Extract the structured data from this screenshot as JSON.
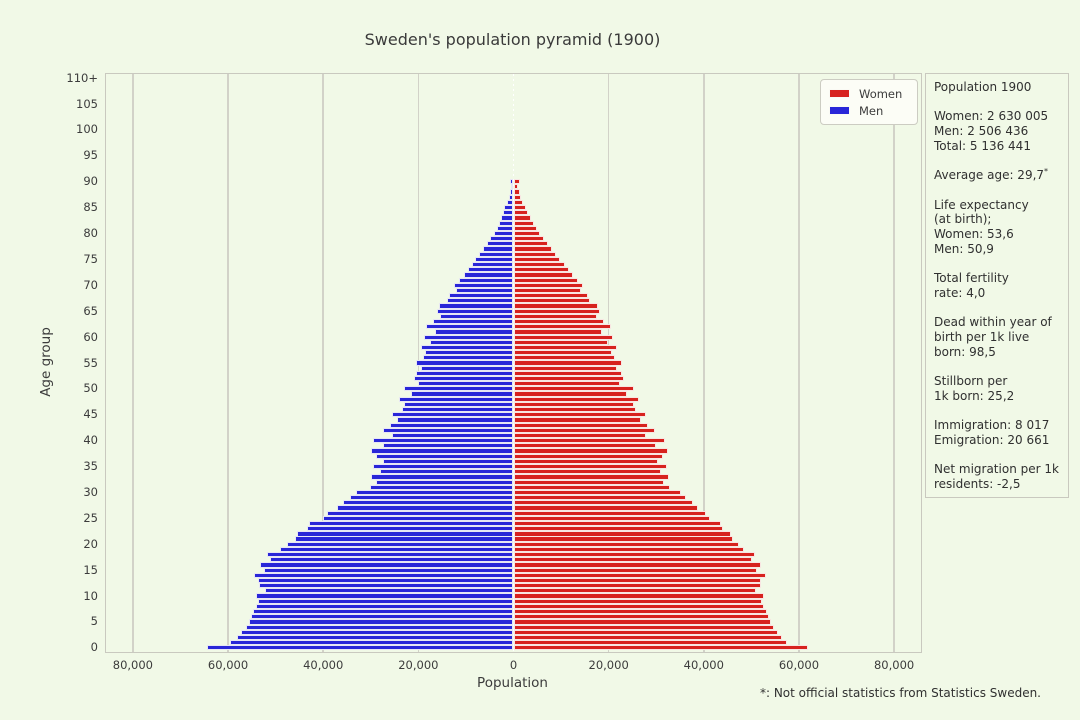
{
  "page": {
    "background": "#f1f9e7",
    "text_color": "#3c3c3c"
  },
  "title": "Sweden's population pyramid (1900)",
  "footnote": "*: Not official statistics from Statistics Sweden.",
  "info_panel": {
    "groups": [
      [
        "Population 1900"
      ],
      [
        "Women: 2 630 005",
        "Men: 2 506 436",
        "Total: 5 136 441"
      ],
      [
        {
          "text": "Average age: 29,7",
          "sup": "*"
        }
      ],
      [
        "Life expectancy",
        "(at birth);",
        "Women: 53,6",
        "Men: 50,9"
      ],
      [
        "Total fertility",
        "rate: 4,0"
      ],
      [
        "Dead within year of",
        "birth per 1k live",
        "born: 98,5"
      ],
      [
        "Stillborn per",
        "1k born: 25,2"
      ],
      [
        "Immigration: 8 017",
        "Emigration: 20 661"
      ],
      [
        "Net migration per 1k",
        "residents: -2,5"
      ]
    ]
  },
  "chart_data": {
    "type": "bar",
    "variant": "population-pyramid-horizontal",
    "title": "Sweden's population pyramid (1900)",
    "xlabel": "Population",
    "ylabel": "Age group",
    "xlim": [
      -85650,
      85650
    ],
    "ylim": [
      -0.8,
      110.8
    ],
    "grid": "vertical-gridlines-at-x-ticks",
    "grid_color": "#d2d2c8",
    "center_line": {
      "x": 0,
      "style": "dotted",
      "color": "#ffffff"
    },
    "x_ticks": {
      "values": [
        -80000,
        -60000,
        -40000,
        -20000,
        0,
        20000,
        40000,
        60000,
        80000
      ],
      "labels": [
        "80,000",
        "60,000",
        "40,000",
        "20,000",
        "0",
        "20,000",
        "40,000",
        "60,000",
        "80,000"
      ]
    },
    "y_ticks": {
      "values": [
        0,
        5,
        10,
        15,
        20,
        25,
        30,
        35,
        40,
        45,
        50,
        55,
        60,
        65,
        70,
        75,
        80,
        85,
        90,
        95,
        100,
        105,
        110
      ],
      "labels": [
        "0",
        "5",
        "10",
        "15",
        "20",
        "25",
        "30",
        "35",
        "40",
        "45",
        "50",
        "55",
        "60",
        "65",
        "70",
        "75",
        "80",
        "85",
        "90",
        "95",
        "100",
        "105",
        "110+"
      ]
    },
    "legend": {
      "position": "upper-right",
      "entries": [
        {
          "label": "Women",
          "color": "#d7221e"
        },
        {
          "label": "Men",
          "color": "#2926d8"
        }
      ]
    },
    "ages": [
      0,
      1,
      2,
      3,
      4,
      5,
      6,
      7,
      8,
      9,
      10,
      11,
      12,
      13,
      14,
      15,
      16,
      17,
      18,
      19,
      20,
      21,
      22,
      23,
      24,
      25,
      26,
      27,
      28,
      29,
      30,
      31,
      32,
      33,
      34,
      35,
      36,
      37,
      38,
      39,
      40,
      41,
      42,
      43,
      44,
      45,
      46,
      47,
      48,
      49,
      50,
      51,
      52,
      53,
      54,
      55,
      56,
      57,
      58,
      59,
      60,
      61,
      62,
      63,
      64,
      65,
      66,
      67,
      68,
      69,
      70,
      71,
      72,
      73,
      74,
      75,
      76,
      77,
      78,
      79,
      80,
      81,
      82,
      83,
      84,
      85,
      86,
      87,
      88,
      89,
      90
    ],
    "series": [
      {
        "name": "Women",
        "side": "right",
        "color": "#d7221e",
        "values": [
          62000,
          57500,
          56500,
          55600,
          54800,
          54200,
          53700,
          53200,
          52700,
          52200,
          52600,
          50900,
          52000,
          52100,
          53000,
          51200,
          52000,
          50200,
          50800,
          48500,
          47300,
          46200,
          45700,
          44000,
          43600,
          41300,
          40500,
          38800,
          37800,
          36300,
          35300,
          32800,
          31700,
          32700,
          30900,
          32300,
          30400,
          31500,
          32400,
          30000,
          31800,
          27900,
          29800,
          28300,
          26800,
          27800,
          25800,
          25300,
          26300,
          23800,
          25400,
          22300,
          23300,
          22800,
          21800,
          22800,
          21300,
          20800,
          21800,
          19800,
          20900,
          18700,
          20500,
          19100,
          17600,
          18100,
          17800,
          16100,
          15600,
          14100,
          14600,
          13600,
          12600,
          11600,
          10800,
          9800,
          9000,
          8100,
          7200,
          6400,
          5600,
          4900,
          4300,
          3700,
          3100,
          2600,
          2100,
          1600,
          1300,
          1000,
          1300
        ]
      },
      {
        "name": "Men",
        "side": "left",
        "color": "#2926d8",
        "values": [
          64500,
          59500,
          58200,
          57200,
          56300,
          55600,
          55100,
          54700,
          54200,
          53700,
          54100,
          52300,
          53500,
          53600,
          54500,
          52400,
          53200,
          51100,
          51800,
          49000,
          47600,
          46000,
          45400,
          43400,
          42900,
          40000,
          39100,
          37100,
          35900,
          34300,
          33100,
          30200,
          28900,
          30000,
          28000,
          29500,
          27500,
          28800,
          30000,
          27500,
          29500,
          25500,
          27500,
          26000,
          24500,
          25500,
          23500,
          23000,
          24000,
          21500,
          23000,
          20000,
          21000,
          20500,
          19500,
          20500,
          19000,
          18500,
          19500,
          17500,
          18800,
          16500,
          18400,
          17000,
          15500,
          16000,
          15700,
          14000,
          13500,
          12000,
          12500,
          11500,
          10500,
          9500,
          8800,
          8000,
          7200,
          6400,
          5600,
          4900,
          4200,
          3550,
          3150,
          2700,
          2300,
          1900,
          1450,
          1000,
          800,
          500,
          800
        ]
      }
    ]
  }
}
